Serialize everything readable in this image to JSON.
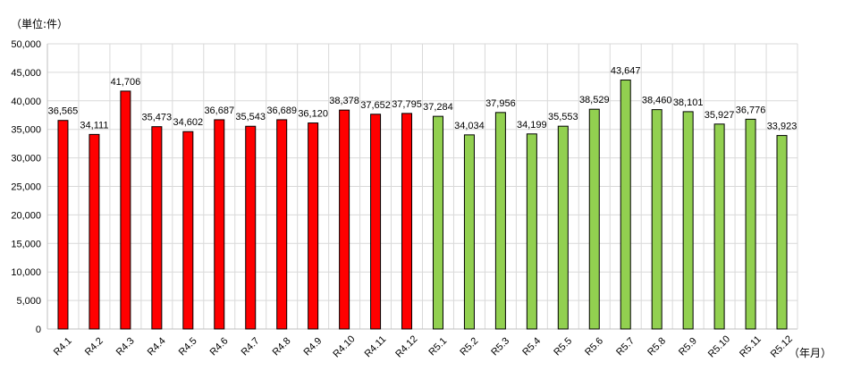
{
  "chart_data": {
    "type": "bar",
    "ylabel": "（単位:件）",
    "xunit": "（年月）",
    "ylim": [
      0,
      50000
    ],
    "ytick_step": 5000,
    "grid": true,
    "categories": [
      "R4.1",
      "R4.2",
      "R4.3",
      "R4.4",
      "R4.5",
      "R4.6",
      "R4.7",
      "R4.8",
      "R4.9",
      "R4.10",
      "R4.11",
      "R4.12",
      "R5.1",
      "R5.2",
      "R5.3",
      "R5.4",
      "R5.5",
      "R5.6",
      "R5.7",
      "R5.8",
      "R5.9",
      "R5.10",
      "R5.11",
      "R5.12"
    ],
    "values": [
      36565,
      34111,
      41706,
      35473,
      34602,
      36687,
      35543,
      36689,
      36120,
      38378,
      37652,
      37795,
      37284,
      34034,
      37956,
      34199,
      35553,
      38529,
      43647,
      38460,
      38101,
      35927,
      36776,
      33923
    ],
    "series_colors": {
      "R4": "#ff0000",
      "R5": "#92d050"
    }
  }
}
